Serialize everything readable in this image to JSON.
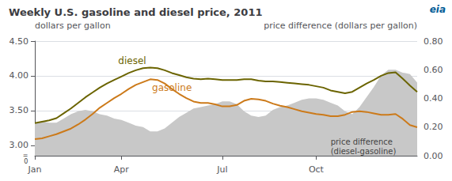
{
  "chart_data": {
    "type": "line",
    "title": "Weekly U.S. gasoline and diesel price, 2011",
    "ylabel": "dollars per gallon",
    "y2label": "price difference (dollars per gallon)",
    "categories": [
      "Jan",
      null,
      null,
      null,
      null,
      null,
      null,
      null,
      null,
      null,
      null,
      null,
      "Apr",
      null,
      null,
      null,
      null,
      null,
      null,
      null,
      null,
      null,
      null,
      null,
      null,
      null,
      "Jul",
      null,
      null,
      null,
      null,
      null,
      null,
      null,
      null,
      null,
      null,
      null,
      null,
      "Oct",
      null,
      null,
      null,
      null,
      null,
      null,
      null,
      null,
      null,
      null,
      null,
      null,
      null,
      null
    ],
    "series": [
      {
        "name": "diesel",
        "type": "line",
        "color": "#6b6400",
        "values": [
          3.32,
          3.34,
          3.36,
          3.39,
          3.46,
          3.53,
          3.61,
          3.69,
          3.76,
          3.83,
          3.89,
          3.94,
          3.99,
          4.04,
          4.08,
          4.11,
          4.12,
          4.11,
          4.08,
          4.04,
          4.01,
          3.98,
          3.96,
          3.95,
          3.96,
          3.95,
          3.94,
          3.94,
          3.94,
          3.95,
          3.95,
          3.93,
          3.92,
          3.92,
          3.91,
          3.9,
          3.89,
          3.88,
          3.87,
          3.85,
          3.83,
          3.79,
          3.77,
          3.75,
          3.77,
          3.83,
          3.89,
          3.94,
          4.0,
          4.04,
          4.05,
          3.96,
          3.86,
          3.77
        ]
      },
      {
        "name": "gasoline",
        "type": "line",
        "color": "#cc7a1a",
        "values": [
          3.09,
          3.1,
          3.13,
          3.16,
          3.2,
          3.24,
          3.3,
          3.37,
          3.45,
          3.54,
          3.61,
          3.68,
          3.74,
          3.81,
          3.87,
          3.91,
          3.95,
          3.94,
          3.89,
          3.81,
          3.74,
          3.68,
          3.63,
          3.61,
          3.61,
          3.59,
          3.56,
          3.56,
          3.58,
          3.64,
          3.67,
          3.66,
          3.64,
          3.6,
          3.57,
          3.55,
          3.52,
          3.49,
          3.47,
          3.45,
          3.44,
          3.42,
          3.42,
          3.44,
          3.48,
          3.49,
          3.48,
          3.46,
          3.44,
          3.44,
          3.45,
          3.38,
          3.29,
          3.26
        ]
      },
      {
        "name": "price difference\n(diesel-gasoline)",
        "type": "area",
        "axis": "y2",
        "color": "#c8c8c8",
        "values": [
          0.23,
          0.24,
          0.23,
          0.23,
          0.26,
          0.29,
          0.31,
          0.32,
          0.31,
          0.29,
          0.28,
          0.26,
          0.25,
          0.23,
          0.21,
          0.2,
          0.17,
          0.17,
          0.19,
          0.23,
          0.27,
          0.3,
          0.33,
          0.34,
          0.35,
          0.36,
          0.38,
          0.38,
          0.36,
          0.31,
          0.28,
          0.27,
          0.28,
          0.32,
          0.34,
          0.35,
          0.37,
          0.39,
          0.4,
          0.4,
          0.39,
          0.37,
          0.35,
          0.31,
          0.29,
          0.34,
          0.41,
          0.48,
          0.56,
          0.6,
          0.6,
          0.58,
          0.57,
          0.51
        ]
      }
    ],
    "ylim": [
      2.85,
      4.5
    ],
    "yticks": [
      {
        "value": 3.0,
        "label": "3.00"
      },
      {
        "value": 3.5,
        "label": "3.50"
      },
      {
        "value": 4.0,
        "label": "4.00"
      },
      {
        "value": 4.5,
        "label": "4.50"
      }
    ],
    "y2lim": [
      0.0,
      0.8
    ],
    "y2ticks": [
      {
        "value": 0.0,
        "label": "0.00"
      },
      {
        "value": 0.2,
        "label": "0.20"
      },
      {
        "value": 0.4,
        "label": "0.40"
      },
      {
        "value": 0.6,
        "label": "0.60"
      },
      {
        "value": 0.8,
        "label": "0.80"
      }
    ],
    "grid": true,
    "annotations": [
      {
        "text": "diesel",
        "x": 13.5,
        "y": 4.14,
        "color": "#6b6400"
      },
      {
        "text": "gasoline",
        "x": 19,
        "y": 3.75,
        "color": "#cc7a1a"
      },
      {
        "text": "price difference\n(diesel-gasoline)",
        "x": 41,
        "y": 0.13,
        "axis": "y2"
      },
      {
        "text": "=\n0",
        "x": -0.5,
        "y": 2.9
      },
      {
        "text": "eia",
        "color": "#005b96"
      }
    ]
  }
}
